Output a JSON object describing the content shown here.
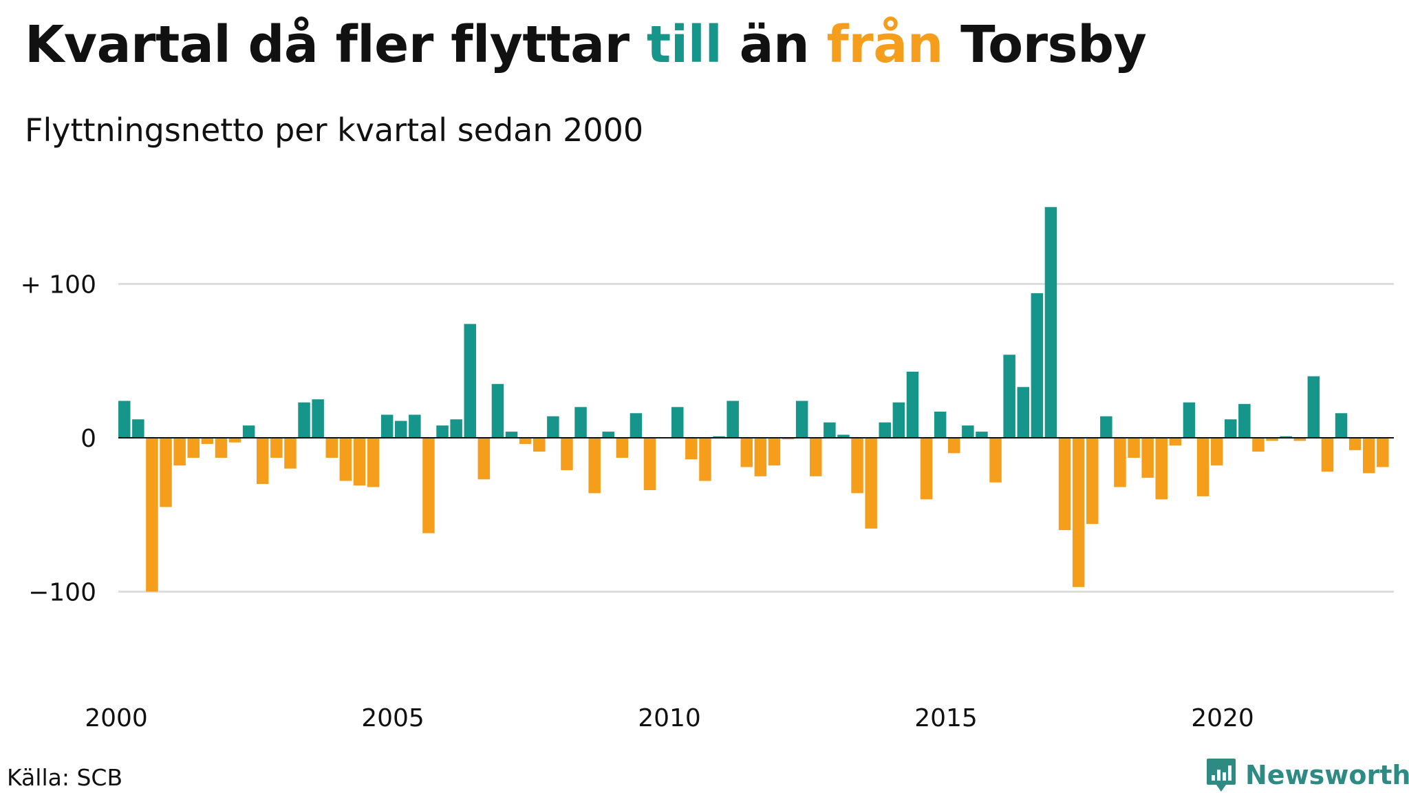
{
  "header": {
    "title_part1": "Kvartal då fler flyttar ",
    "title_pos_word": "till",
    "title_part2": " än ",
    "title_neg_word": "från",
    "title_part3": " Torsby",
    "subtitle": "Flyttningsnetto per kvartal sedan 2000"
  },
  "footer": {
    "source": "Källa: SCB",
    "brand": "Newsworthy"
  },
  "colors": {
    "positive": "#16968a",
    "negative": "#f59e1b",
    "grid": "#dddddd",
    "brand": "#2e8b84"
  },
  "chart_data": {
    "type": "bar",
    "title": "Kvartal då fler flyttar till än från Torsby",
    "subtitle": "Flyttningsnetto per kvartal sedan 2000",
    "xlabel": "",
    "ylabel": "",
    "start_year": 2000,
    "periods_per_year": 4,
    "x_ticks": [
      "2000",
      "2005",
      "2010",
      "2015",
      "2020"
    ],
    "y_ticks": [
      {
        "value": 100,
        "label": "+ 100"
      },
      {
        "value": 0,
        "label": "0"
      },
      {
        "value": -100,
        "label": "−100"
      }
    ],
    "ylim": [
      -150,
      150
    ],
    "grid": true,
    "values": [
      24,
      12,
      -100,
      -45,
      -18,
      -13,
      -4,
      -13,
      -3,
      8,
      -30,
      -13,
      -20,
      23,
      25,
      -13,
      -28,
      -31,
      -32,
      15,
      11,
      15,
      -62,
      8,
      12,
      74,
      -27,
      35,
      4,
      -4,
      -9,
      14,
      -21,
      20,
      -36,
      4,
      -13,
      16,
      -34,
      0,
      20,
      -14,
      -28,
      1,
      24,
      -19,
      -25,
      -18,
      -1,
      24,
      -25,
      10,
      2,
      -36,
      -59,
      10,
      23,
      43,
      -40,
      17,
      -10,
      8,
      4,
      -29,
      54,
      33,
      94,
      150,
      -60,
      -97,
      -56,
      14,
      -32,
      -13,
      -26,
      -40,
      -5,
      23,
      -38,
      -18,
      12,
      22,
      -9,
      -2,
      1,
      -2,
      40,
      -22,
      16,
      -8,
      -23,
      -19
    ]
  }
}
